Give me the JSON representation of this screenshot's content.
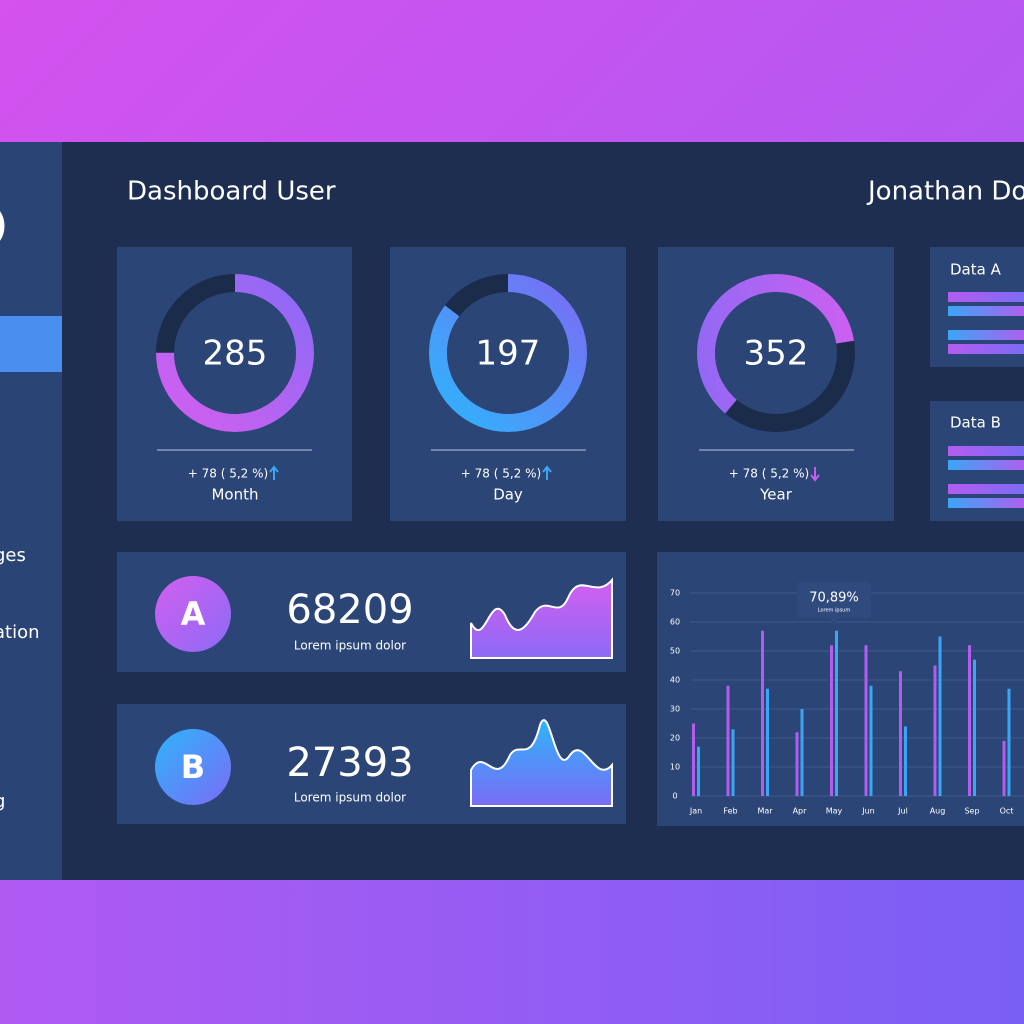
{
  "header": {
    "title": "Dashboard User",
    "user": "Jonathan Doe"
  },
  "sidebar": {
    "items": [
      "ges",
      "ation",
      "g"
    ]
  },
  "stat_cards": [
    {
      "value": 285,
      "change": "+ 78 ( 5,2 %)",
      "label": "Month"
    },
    {
      "value": 197,
      "change": "+ 78 ( 5,2 %)",
      "label": "Day"
    },
    {
      "value": 352,
      "change": "+ 78 ( 5,2 %)",
      "label": "Year"
    }
  ],
  "side_cards": [
    "Data A",
    "Data B"
  ],
  "kpi_cards": [
    {
      "badge": "A",
      "value": 68209,
      "caption": "Lorem ipsum dolor"
    },
    {
      "badge": "B",
      "value": 27393,
      "caption": "Lorem ipsum dolor"
    }
  ],
  "chart_data": {
    "type": "bar",
    "categories": [
      "Jan",
      "Feb",
      "Mar",
      "Apr",
      "May",
      "Jun",
      "Jul",
      "Aug",
      "Sep",
      "Oct"
    ],
    "series": [
      {
        "color": "#b45cf0",
        "values": [
          25,
          38,
          57,
          22,
          52,
          52,
          43,
          45,
          52,
          19
        ]
      },
      {
        "color": "#3aa6f5",
        "values": [
          17,
          23,
          37,
          30,
          57,
          38,
          24,
          55,
          47,
          37
        ]
      }
    ],
    "ylim": [
      0,
      70
    ],
    "yticks": [
      0,
      10,
      20,
      30,
      40,
      50,
      60,
      70
    ],
    "grid": true,
    "annotation": {
      "text": "70,89%",
      "subtext": "Lorem ipsum"
    }
  }
}
